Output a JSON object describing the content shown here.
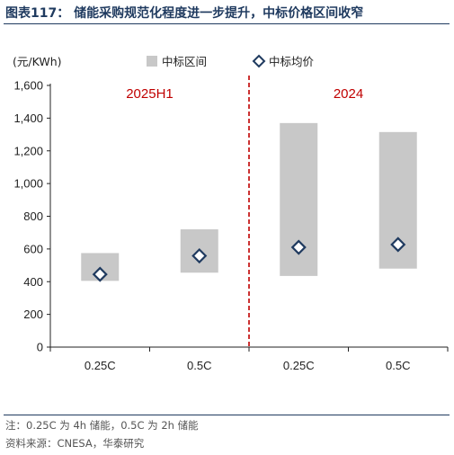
{
  "figure": {
    "title": "图表117： 储能采购规范化程度进一步提升，中标价格区间收窄",
    "note": "注：0.25C 为 4h 储能，0.5C 为 2h 储能",
    "source": "资料来源：CNESA，华泰研究"
  },
  "chart_data": {
    "type": "bar",
    "unit_label": "(元/KWh)",
    "categories": [
      "0.25C",
      "0.5C",
      "0.25C",
      "0.5C"
    ],
    "groups": [
      {
        "label": "2025H1",
        "categories": [
          "0.25C",
          "0.5C"
        ]
      },
      {
        "label": "2024",
        "categories": [
          "0.25C",
          "0.5C"
        ]
      }
    ],
    "series": [
      {
        "name": "中标区间",
        "type": "range-bar",
        "color": "#c8c8c8",
        "low": [
          405,
          455,
          435,
          480
        ],
        "high": [
          575,
          720,
          1370,
          1315
        ]
      },
      {
        "name": "中标均价",
        "type": "scatter",
        "marker": "diamond",
        "color": "#1f3a5f",
        "values": [
          445,
          558,
          610,
          627
        ]
      }
    ],
    "yticks": [
      "0",
      "200",
      "400",
      "600",
      "800",
      "1,000",
      "1,200",
      "1,400",
      "1,600"
    ],
    "ylim": [
      0,
      1600
    ],
    "grid": false,
    "legend_position": "top",
    "divider": {
      "style": "dashed",
      "color": "#c00000",
      "between_categories": [
        2,
        3
      ]
    }
  }
}
